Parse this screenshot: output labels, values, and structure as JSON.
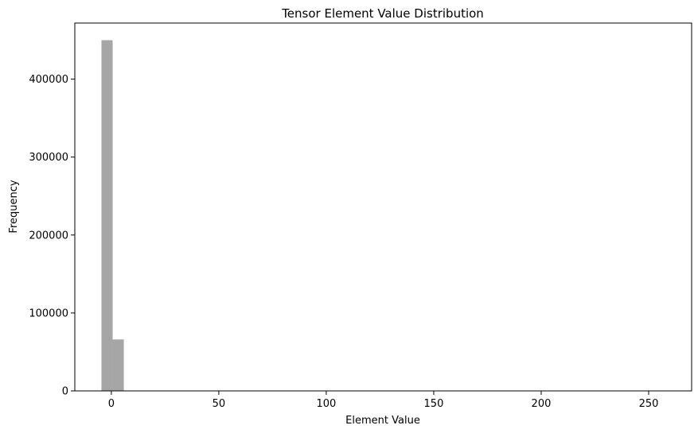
{
  "chart_data": {
    "type": "bar",
    "title": "Tensor Element Value Distribution",
    "xlabel": "Element Value",
    "ylabel": "Frequency",
    "xlim": [
      -17,
      270
    ],
    "ylim": [
      0,
      472000
    ],
    "x_ticks": [
      0,
      50,
      100,
      150,
      200,
      250
    ],
    "x_tick_labels": [
      "0",
      "50",
      "100",
      "150",
      "200",
      "250"
    ],
    "y_ticks": [
      0,
      100000,
      200000,
      300000,
      400000
    ],
    "y_tick_labels": [
      "0",
      "100000",
      "200000",
      "300000",
      "400000"
    ],
    "bin_width": 5.2,
    "bins": [
      {
        "x0": -4.6,
        "x1": 0.6,
        "count": 450000
      },
      {
        "x0": 0.6,
        "x1": 5.8,
        "count": 66000
      }
    ],
    "bar_color": "#a6a6a6",
    "grid": false,
    "legend": "none"
  }
}
